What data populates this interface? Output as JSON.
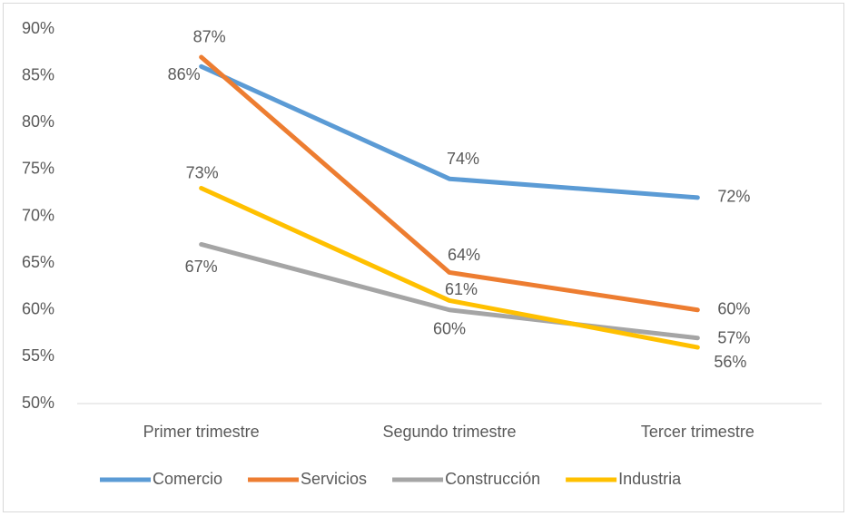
{
  "chart_data": {
    "type": "line",
    "categories": [
      "Primer trimestre",
      "Segundo trimestre",
      "Tercer trimestre"
    ],
    "series": [
      {
        "name": "Comercio",
        "color": "#5b9bd5",
        "values": [
          86,
          74,
          72
        ],
        "value_labels": [
          "86%",
          "74%",
          "72%"
        ]
      },
      {
        "name": "Servicios",
        "color": "#ed7d31",
        "values": [
          87,
          64,
          60
        ],
        "value_labels": [
          "87%",
          "64%",
          "60%"
        ]
      },
      {
        "name": "Construcción",
        "color": "#a5a5a5",
        "values": [
          67,
          60,
          57
        ],
        "value_labels": [
          "67%",
          "60%",
          "57%"
        ]
      },
      {
        "name": "Industria",
        "color": "#ffc000",
        "values": [
          73,
          61,
          56
        ],
        "value_labels": [
          "73%",
          "61%",
          "56%"
        ]
      }
    ],
    "ylim": [
      50,
      90
    ],
    "yticks": [
      {
        "value": 50,
        "label": "50%"
      },
      {
        "value": 55,
        "label": "55%"
      },
      {
        "value": 60,
        "label": "60%"
      },
      {
        "value": 65,
        "label": "65%"
      },
      {
        "value": 70,
        "label": "70%"
      },
      {
        "value": 75,
        "label": "75%"
      },
      {
        "value": 80,
        "label": "80%"
      },
      {
        "value": 85,
        "label": "85%"
      },
      {
        "value": 90,
        "label": "90%"
      }
    ],
    "legend": "bottom"
  }
}
